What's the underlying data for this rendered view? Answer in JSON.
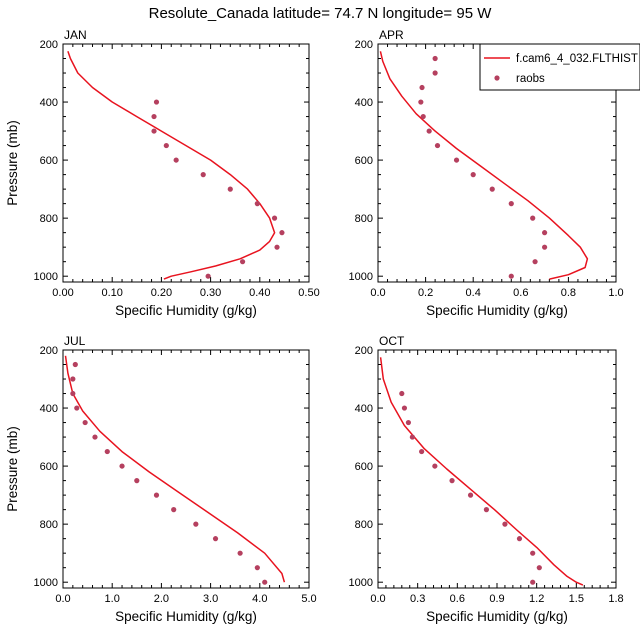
{
  "title": "Resolute_Canada  latitude= 74.7 N longitude= 95 W",
  "colors": {
    "model": "#e8131f",
    "obs": "#b5405f"
  },
  "legend": {
    "model_label": "f.cam6_4_032.FLTHIST",
    "obs_label": "raobs",
    "placement": "top-right of APR panel"
  },
  "chart_data": [
    {
      "type": "scatter",
      "panel": "JAN",
      "title": "JAN",
      "xlabel": "Specific Humidity (g/kg)",
      "ylabel": "Pressure (mb)",
      "xlim": [
        0,
        0.5
      ],
      "ylim": [
        1020,
        200
      ],
      "xticks": [
        "0.00",
        "0.10",
        "0.20",
        "0.30",
        "0.40",
        "0.50"
      ],
      "yticks": [
        "200",
        "400",
        "600",
        "800",
        "1000"
      ],
      "series": [
        {
          "kind": "line",
          "x": [
            0.01,
            0.015,
            0.03,
            0.06,
            0.1,
            0.15,
            0.2,
            0.25,
            0.3,
            0.34,
            0.375,
            0.4,
            0.42,
            0.43,
            0.42,
            0.4,
            0.36,
            0.31,
            0.26,
            0.22,
            0.205
          ],
          "y": [
            225,
            250,
            300,
            350,
            400,
            450,
            500,
            550,
            600,
            650,
            700,
            750,
            800,
            850,
            880,
            910,
            940,
            965,
            985,
            1000,
            1010
          ]
        },
        {
          "kind": "points",
          "x": [
            0.19,
            0.185,
            0.185,
            0.21,
            0.23,
            0.285,
            0.34,
            0.395,
            0.43,
            0.445,
            0.435,
            0.365,
            0.295
          ],
          "y": [
            400,
            450,
            500,
            550,
            600,
            650,
            700,
            750,
            800,
            850,
            900,
            950,
            1000
          ]
        }
      ]
    },
    {
      "type": "scatter",
      "panel": "APR",
      "title": "APR",
      "xlabel": "Specific Humidity (g/kg)",
      "ylabel": "",
      "xlim": [
        0,
        1.0
      ],
      "ylim": [
        1020,
        200
      ],
      "xticks": [
        "0.0",
        "0.2",
        "0.4",
        "0.6",
        "0.8",
        "1.0"
      ],
      "yticks": [
        "200",
        "400",
        "600",
        "800",
        "1000"
      ],
      "series": [
        {
          "kind": "line",
          "x": [
            0.01,
            0.02,
            0.05,
            0.1,
            0.16,
            0.24,
            0.33,
            0.43,
            0.53,
            0.63,
            0.72,
            0.8,
            0.85,
            0.88,
            0.87,
            0.8,
            0.72
          ],
          "y": [
            225,
            260,
            320,
            380,
            440,
            500,
            560,
            620,
            680,
            740,
            800,
            860,
            900,
            940,
            970,
            995,
            1010
          ]
        },
        {
          "kind": "points",
          "x": [
            0.24,
            0.24,
            0.185,
            0.18,
            0.19,
            0.215,
            0.25,
            0.33,
            0.4,
            0.48,
            0.56,
            0.65,
            0.7,
            0.7,
            0.66,
            0.56
          ],
          "y": [
            250,
            300,
            350,
            400,
            450,
            500,
            550,
            600,
            650,
            700,
            750,
            800,
            850,
            900,
            950,
            1000
          ]
        }
      ]
    },
    {
      "type": "scatter",
      "panel": "JUL",
      "title": "JUL",
      "xlabel": "Specific Humidity (g/kg)",
      "ylabel": "Pressure (mb)",
      "xlim": [
        0,
        5.0
      ],
      "ylim": [
        1020,
        200
      ],
      "xticks": [
        "0.0",
        "1.0",
        "2.0",
        "3.0",
        "4.0",
        "5.0"
      ],
      "yticks": [
        "200",
        "400",
        "600",
        "800",
        "1000"
      ],
      "series": [
        {
          "kind": "line",
          "x": [
            0.05,
            0.1,
            0.2,
            0.4,
            0.75,
            1.2,
            1.75,
            2.35,
            2.95,
            3.55,
            4.1,
            4.45,
            4.5
          ],
          "y": [
            220,
            280,
            350,
            410,
            480,
            550,
            620,
            690,
            760,
            830,
            900,
            970,
            1000
          ]
        },
        {
          "kind": "points",
          "x": [
            0.25,
            0.2,
            0.2,
            0.28,
            0.45,
            0.65,
            0.9,
            1.2,
            1.5,
            1.9,
            2.25,
            2.7,
            3.1,
            3.6,
            3.95,
            4.1
          ],
          "y": [
            250,
            300,
            350,
            400,
            450,
            500,
            550,
            600,
            650,
            700,
            750,
            800,
            850,
            900,
            950,
            1000
          ]
        }
      ]
    },
    {
      "type": "scatter",
      "panel": "OCT",
      "title": "OCT",
      "xlabel": "Specific Humidity (g/kg)",
      "ylabel": "",
      "xlim": [
        0,
        1.8
      ],
      "ylim": [
        1020,
        200
      ],
      "xticks": [
        "0.0",
        "0.3",
        "0.6",
        "0.9",
        "1.2",
        "1.5",
        "1.8"
      ],
      "yticks": [
        "200",
        "400",
        "600",
        "800",
        "1000"
      ],
      "series": [
        {
          "kind": "line",
          "x": [
            0.02,
            0.04,
            0.1,
            0.2,
            0.35,
            0.52,
            0.7,
            0.88,
            1.05,
            1.2,
            1.33,
            1.43,
            1.5,
            1.55
          ],
          "y": [
            225,
            300,
            380,
            460,
            540,
            610,
            680,
            750,
            820,
            880,
            940,
            980,
            1000,
            1010
          ]
        },
        {
          "kind": "points",
          "x": [
            0.18,
            0.2,
            0.23,
            0.26,
            0.33,
            0.43,
            0.56,
            0.7,
            0.82,
            0.96,
            1.07,
            1.17,
            1.22,
            1.17
          ],
          "y": [
            350,
            400,
            450,
            500,
            550,
            600,
            650,
            700,
            750,
            800,
            850,
            900,
            950,
            1000
          ]
        }
      ]
    }
  ]
}
